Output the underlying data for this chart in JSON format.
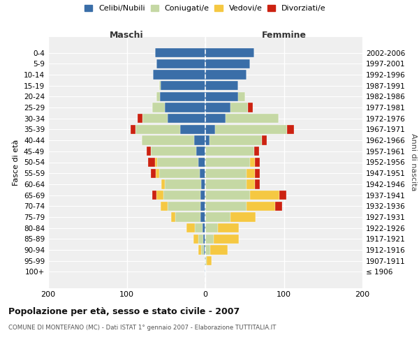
{
  "age_groups": [
    "100+",
    "95-99",
    "90-94",
    "85-89",
    "80-84",
    "75-79",
    "70-74",
    "65-69",
    "60-64",
    "55-59",
    "50-54",
    "45-49",
    "40-44",
    "35-39",
    "30-34",
    "25-29",
    "20-24",
    "15-19",
    "10-14",
    "5-9",
    "0-4"
  ],
  "birth_years": [
    "≤ 1906",
    "1907-1911",
    "1912-1916",
    "1917-1921",
    "1922-1926",
    "1927-1931",
    "1932-1936",
    "1937-1941",
    "1942-1946",
    "1947-1951",
    "1952-1956",
    "1957-1961",
    "1962-1966",
    "1967-1971",
    "1972-1976",
    "1977-1981",
    "1982-1986",
    "1987-1991",
    "1992-1996",
    "1997-2001",
    "2002-2006"
  ],
  "maschi": {
    "celibi": [
      1,
      1,
      2,
      3,
      4,
      6,
      6,
      6,
      5,
      7,
      9,
      12,
      14,
      32,
      48,
      52,
      58,
      57,
      67,
      62,
      64
    ],
    "coniugati": [
      0,
      0,
      3,
      6,
      9,
      32,
      42,
      47,
      47,
      52,
      52,
      57,
      67,
      57,
      32,
      16,
      4,
      2,
      0,
      0,
      0
    ],
    "vedovi": [
      0,
      0,
      4,
      6,
      11,
      6,
      9,
      9,
      4,
      4,
      3,
      0,
      0,
      0,
      0,
      0,
      0,
      0,
      0,
      0,
      0
    ],
    "divorziati": [
      0,
      0,
      0,
      0,
      0,
      0,
      0,
      6,
      0,
      6,
      9,
      6,
      0,
      6,
      6,
      0,
      0,
      0,
      0,
      0,
      0
    ]
  },
  "femmine": {
    "nubili": [
      0,
      0,
      0,
      0,
      0,
      0,
      0,
      0,
      0,
      0,
      0,
      0,
      5,
      12,
      26,
      32,
      42,
      42,
      52,
      57,
      62
    ],
    "coniugate": [
      0,
      2,
      6,
      11,
      16,
      32,
      52,
      57,
      52,
      52,
      57,
      62,
      67,
      92,
      67,
      22,
      9,
      0,
      0,
      0,
      0
    ],
    "vedove": [
      0,
      6,
      22,
      32,
      27,
      32,
      37,
      37,
      11,
      11,
      6,
      0,
      0,
      0,
      0,
      0,
      0,
      0,
      0,
      0,
      0
    ],
    "divorziate": [
      0,
      0,
      0,
      0,
      0,
      0,
      9,
      9,
      6,
      6,
      6,
      6,
      6,
      9,
      0,
      6,
      0,
      0,
      0,
      0,
      0
    ]
  },
  "colors": {
    "celibi_nubili": "#3a6ea8",
    "coniugati": "#c5d8a4",
    "vedovi": "#f5c842",
    "divorziati": "#cc2211"
  },
  "xlim": [
    -200,
    200
  ],
  "xticks": [
    -200,
    -100,
    0,
    100,
    200
  ],
  "xticklabels": [
    "200",
    "100",
    "0",
    "100",
    "200"
  ],
  "title": "Popolazione per età, sesso e stato civile - 2007",
  "subtitle": "COMUNE DI MONTEFANO (MC) - Dati ISTAT 1° gennaio 2007 - Elaborazione TUTTITALIA.IT",
  "ylabel_left": "Fasce di età",
  "ylabel_right": "Anni di nascita",
  "label_maschi": "Maschi",
  "label_femmine": "Femmine",
  "legend_labels": [
    "Celibi/Nubili",
    "Coniugati/e",
    "Vedovi/e",
    "Divorziati/e"
  ],
  "bg_color": "#efefef",
  "bar_height": 0.85
}
